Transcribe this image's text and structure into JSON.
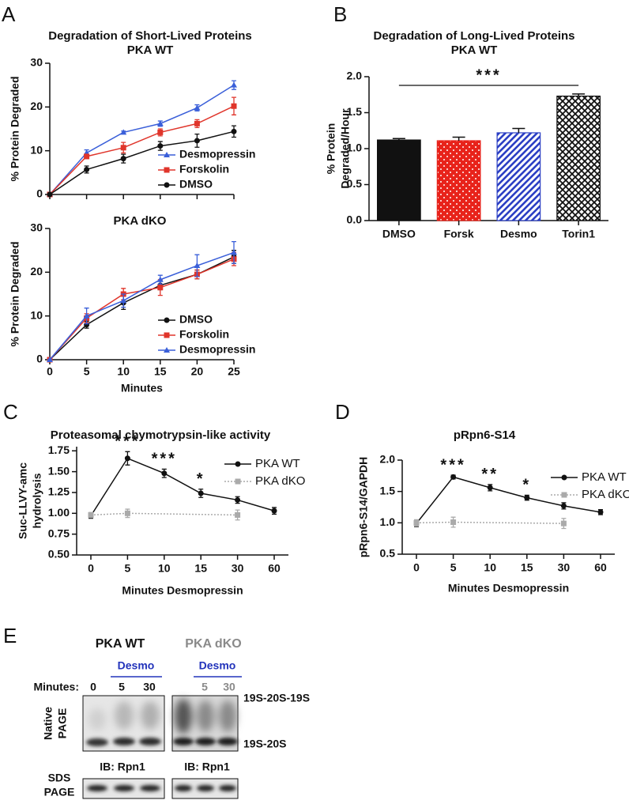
{
  "chart_data": [
    {
      "type": "line",
      "panel": "A",
      "title": "Degradation of Short-Lived Proteins",
      "subtitle": "PKA WT",
      "ylabel": "% Protein Degraded",
      "x": [
        0,
        5,
        10,
        15,
        20,
        25
      ],
      "xlim": [
        0,
        25
      ],
      "xticks": [
        0,
        5,
        10,
        15,
        20,
        25
      ],
      "xtick_labels": false,
      "ylim": [
        0,
        30
      ],
      "yticks": [
        0,
        10,
        20,
        30
      ],
      "legend": "lower right",
      "series": [
        {
          "name": "Desmopressin",
          "color": "#3a5fd9",
          "marker": "triangle",
          "values": [
            0,
            9.5,
            14.2,
            16.2,
            19.8,
            25
          ],
          "errors": [
            0,
            0.7,
            0.3,
            0.6,
            0.7,
            1.0
          ]
        },
        {
          "name": "Forskolin",
          "color": "#e0352b",
          "marker": "square",
          "values": [
            0,
            8.7,
            10.7,
            14.2,
            16.2,
            20.2
          ],
          "errors": [
            0,
            0.5,
            1.2,
            0.8,
            0.9,
            2.0
          ]
        },
        {
          "name": "DMSO",
          "color": "#111111",
          "marker": "circle",
          "values": [
            0,
            5.7,
            8.2,
            11.1,
            12.3,
            14.4
          ],
          "errors": [
            0,
            0.8,
            1.0,
            1.0,
            1.5,
            1.3
          ]
        }
      ]
    },
    {
      "type": "line",
      "title": "PKA dKO",
      "ylabel": "% Protein Degraded",
      "xlabel": "Minutes",
      "x": [
        0,
        5,
        10,
        15,
        20,
        25
      ],
      "xlim": [
        0,
        25
      ],
      "xticks": [
        0,
        5,
        10,
        15,
        20,
        25
      ],
      "ylim": [
        0,
        30
      ],
      "yticks": [
        0,
        10,
        20,
        30
      ],
      "legend": "lower right",
      "series": [
        {
          "name": "DMSO",
          "color": "#111111",
          "marker": "circle",
          "values": [
            0,
            8,
            13,
            17,
            19.5,
            23.5
          ],
          "errors": [
            0,
            0.8,
            1.5,
            1,
            1,
            1.5
          ]
        },
        {
          "name": "Forskolin",
          "color": "#e0352b",
          "marker": "square",
          "values": [
            0,
            9.5,
            15,
            16.5,
            19.5,
            23
          ],
          "errors": [
            0,
            1,
            1.3,
            1.8,
            1,
            1.5
          ]
        },
        {
          "name": "Desmopressin",
          "color": "#3a5fd9",
          "marker": "triangle",
          "values": [
            0,
            10,
            13.5,
            18.3,
            21.5,
            24.5
          ],
          "errors": [
            0,
            1.8,
            1.5,
            1,
            2.5,
            2.5
          ]
        }
      ]
    },
    {
      "type": "bar",
      "panel": "B",
      "title": "Degradation of Long-Lived Proteins",
      "subtitle": "PKA WT",
      "ylabel": [
        "% Protein",
        "Degraded/Hour"
      ],
      "categories": [
        "DMSO",
        "Forsk",
        "Desmo",
        "Torin1"
      ],
      "values": [
        1.12,
        1.11,
        1.22,
        1.73
      ],
      "errors": [
        0.02,
        0.05,
        0.06,
        0.03
      ],
      "colors": [
        "#111111",
        "#e8231b",
        "#2b3fc4",
        "#111111"
      ],
      "patterns": [
        "solid",
        "dots",
        "stripes",
        "crosshatch"
      ],
      "ylim": [
        0,
        2
      ],
      "yticks": [
        {
          "value": 0,
          "label": "0.0"
        },
        0.5,
        {
          "value": 1,
          "label": "1.0"
        },
        1.5,
        {
          "value": 2,
          "label": "2.0"
        }
      ],
      "annotation": "***"
    },
    {
      "type": "line",
      "panel": "C",
      "title": "Proteasomal chymotrypsin-like activity",
      "ylabel": [
        "Suc-LLVY-amc",
        "hydrolysis"
      ],
      "xlabel": "Minutes Desmopressin",
      "categories": [
        0,
        5,
        10,
        15,
        30,
        60
      ],
      "ylim": [
        0.5,
        1.8
      ],
      "yticks": [
        {
          "value": 0.5,
          "label": "0.50"
        },
        0.75,
        {
          "value": 1,
          "label": "1.00"
        },
        1.25,
        {
          "value": 1.5,
          "label": "1.50"
        },
        1.75
      ],
      "legend": "upper right",
      "series": [
        {
          "name": "PKA WT",
          "color": "#111111",
          "marker": "circle",
          "values": [
            0.97,
            1.66,
            1.48,
            1.24,
            1.16,
            1.03
          ],
          "errors": [
            0.03,
            0.08,
            0.05,
            0.05,
            0.04,
            0.04
          ]
        },
        {
          "name": "PKA dKO",
          "color": "#aaaaaa",
          "marker": "square",
          "dashed": true,
          "x": [
            0,
            5,
            30
          ],
          "values": [
            0.98,
            1.0,
            0.98
          ],
          "errors": [
            0.03,
            0.05,
            0.06
          ]
        }
      ],
      "annotations": [
        {
          "x": 5,
          "text": "***"
        },
        {
          "x": 10,
          "text": "***"
        },
        {
          "x": 15,
          "text": "*"
        }
      ]
    },
    {
      "type": "line",
      "panel": "D",
      "title": "pRpn6-S14",
      "ylabel": "pRpn6-S14/GAPDH",
      "xlabel": "Minutes Desmopressin",
      "categories": [
        0,
        5,
        10,
        15,
        30,
        60
      ],
      "ylim": [
        0.5,
        2.0
      ],
      "yticks": [
        0.5,
        {
          "value": 1,
          "label": "1.0"
        },
        1.5,
        {
          "value": 2,
          "label": "2.0"
        }
      ],
      "legend": "upper right",
      "series": [
        {
          "name": "PKA WT",
          "color": "#111111",
          "marker": "circle",
          "values": [
            0.99,
            1.73,
            1.56,
            1.4,
            1.27,
            1.17
          ],
          "errors": [
            0.05,
            0.03,
            0.05,
            0.04,
            0.05,
            0.04
          ]
        },
        {
          "name": "PKA dKO",
          "color": "#aaaaaa",
          "marker": "square",
          "dashed": true,
          "x": [
            0,
            5,
            30
          ],
          "values": [
            1.0,
            1.01,
            0.99
          ],
          "errors": [
            0.05,
            0.08,
            0.08
          ]
        }
      ],
      "annotations": [
        {
          "x": 5,
          "text": "***"
        },
        {
          "x": 10,
          "text": "**"
        },
        {
          "x": 15,
          "text": "*"
        }
      ]
    }
  ],
  "blot": {
    "panel": "E",
    "minutes_label": "Minutes:",
    "groups": [
      {
        "title": "PKA WT",
        "treatment": "Desmo",
        "lanes": [
          0,
          5,
          30
        ],
        "antibody": "IB: Rpn1"
      },
      {
        "title": "PKA dKO",
        "treatment": "Desmo",
        "lanes": [
          5,
          30
        ],
        "antibody": "IB: Rpn1"
      }
    ],
    "gel_labels": [
      [
        "Native",
        "PAGE"
      ],
      [
        "SDS",
        "PAGE"
      ]
    ],
    "bands": [
      "19S-20S-19S",
      "19S-20S"
    ]
  }
}
